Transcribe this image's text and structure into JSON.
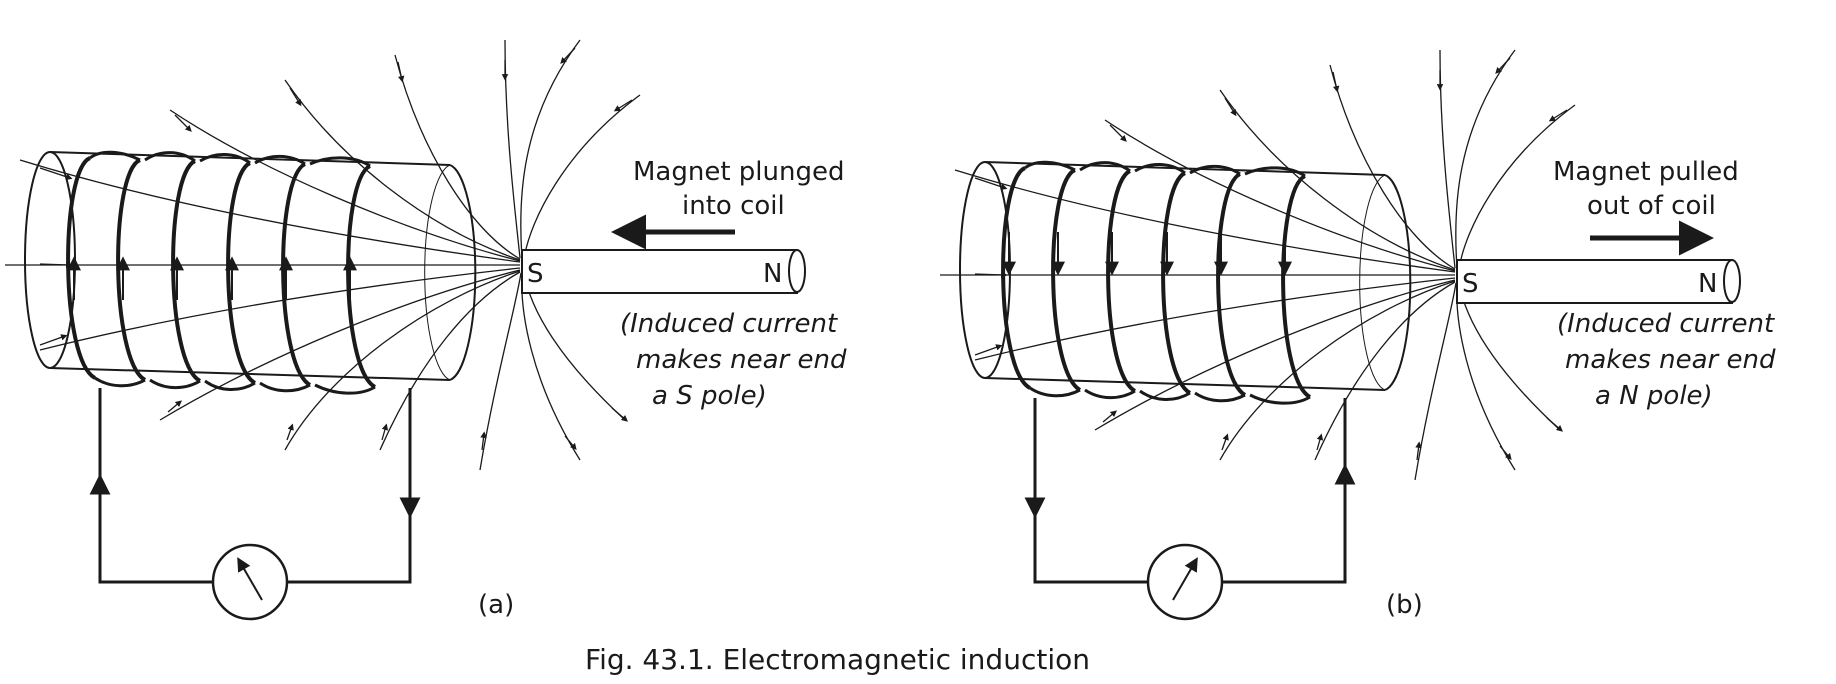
{
  "caption": "Fig. 43.1. Electromagnetic induction",
  "panels": [
    {
      "id": "a",
      "label": "(a)",
      "action_line1": "Magnet  plunged",
      "action_line2": "into  coil",
      "note_line1": "(Induced  current",
      "note_line2": "makes  near  end",
      "note_line3": "a  S  pole)",
      "near_pole": "S",
      "far_pole": "N",
      "motion_direction": "toward coil",
      "coil_current_arrows": "up on front"
    },
    {
      "id": "b",
      "label": "(b)",
      "action_line1": "Magnet  pulled",
      "action_line2": "out  of  coil",
      "note_line1": "(Induced  current",
      "note_line2": "makes  near  end",
      "note_line3": "a  N  pole)",
      "near_pole": "S",
      "far_pole": "N",
      "motion_direction": "away from coil",
      "coil_current_arrows": "down on front"
    }
  ]
}
